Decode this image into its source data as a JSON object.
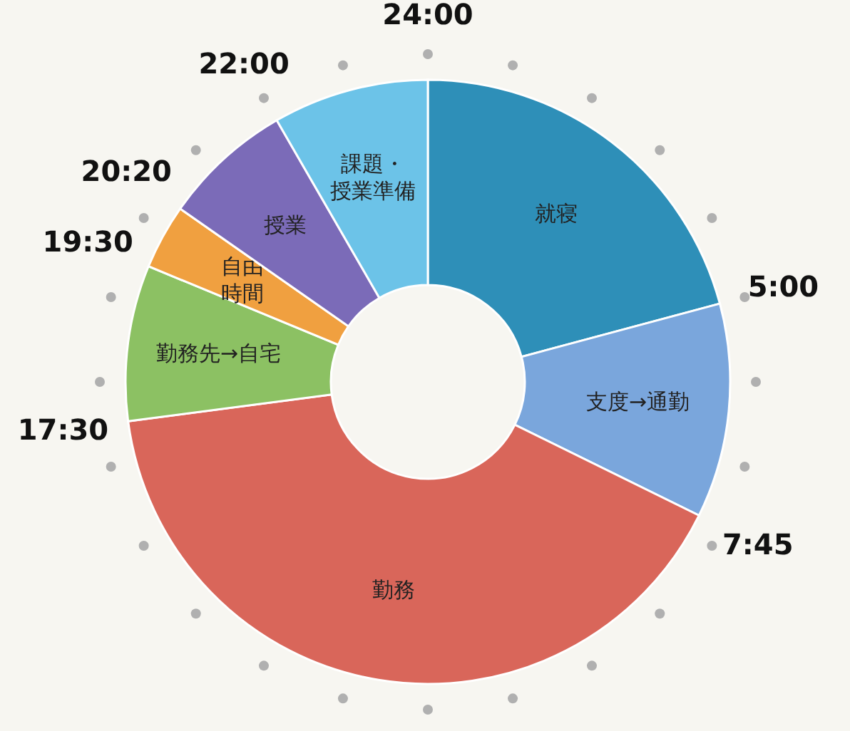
{
  "chart_data": {
    "type": "donut",
    "categories": [
      "就寝",
      "支度→通勤",
      "勤務",
      "勤務先→自宅",
      "自由時間",
      "授業",
      "課題・授業準備"
    ],
    "values": [
      20.83,
      11.46,
      40.63,
      8.33,
      3.47,
      6.95,
      8.33
    ],
    "colors": [
      "#2e8fb8",
      "#7aa6dc",
      "#d9665a",
      "#8cc163",
      "#f0a040",
      "#7b6bb8",
      "#6cc3e8"
    ],
    "annotations": [
      "24:00",
      "5:00",
      "7:45",
      "17:30",
      "19:30",
      "20:20",
      "22:00"
    ]
  }
}
